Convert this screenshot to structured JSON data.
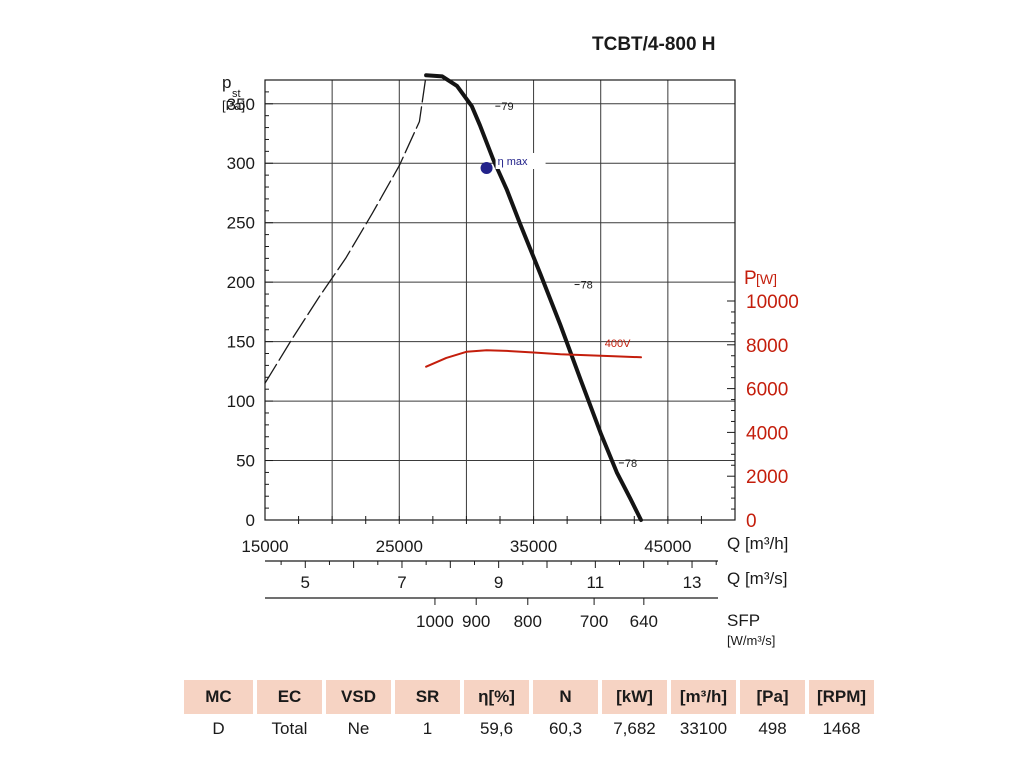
{
  "chart_data": {
    "type": "line",
    "title": "TCBT/4-800 H",
    "y_left": {
      "label_main": "p",
      "label_sub": "st",
      "unit": "[Pa]",
      "range": [
        0,
        370
      ],
      "ticks": [
        0,
        50,
        100,
        150,
        200,
        250,
        300,
        350
      ],
      "tick_labels": [
        "0",
        "50",
        "100",
        "150",
        "200",
        "250",
        "300",
        "350"
      ]
    },
    "y_right": {
      "label_main": "P",
      "unit": "[W]",
      "range": [
        0,
        10000
      ],
      "ticks": [
        0,
        2000,
        4000,
        6000,
        8000,
        10000
      ],
      "tick_labels": [
        "0",
        "2000",
        "4000",
        "6000",
        "8000",
        "10000"
      ]
    },
    "x_m3h": {
      "label": "Q [m³/h]",
      "range": [
        15000,
        50000
      ],
      "ticks": [
        15000,
        25000,
        35000,
        45000
      ],
      "tick_labels": [
        "15000",
        "25000",
        "35000",
        "45000"
      ]
    },
    "x_m3s": {
      "label": "Q [m³/s]",
      "ticks": [
        5,
        7,
        9,
        11,
        13
      ],
      "tick_labels": [
        "5",
        "7",
        "9",
        "11",
        "13"
      ]
    },
    "sfp": {
      "label": "SFP",
      "unit": "[W/m³/s]",
      "ticks": [
        1000,
        900,
        800,
        700,
        640
      ],
      "tick_labels": [
        "1000",
        "900",
        "800",
        "700",
        "640"
      ]
    },
    "series": [
      {
        "name": "pressure (unstable region)",
        "style": "dashed",
        "x": [
          15000,
          17000,
          19000,
          21000,
          23000,
          25000,
          26500,
          27000
        ],
        "y": [
          115,
          152,
          187,
          220,
          258,
          298,
          335,
          374
        ]
      },
      {
        "name": "pressure",
        "style": "solid",
        "x": [
          27000,
          28200,
          29300,
          30400,
          31000,
          32000,
          33000,
          34000,
          35500,
          37000,
          38500,
          40000,
          41200,
          42200,
          43000
        ],
        "y": [
          374,
          373,
          365,
          348,
          332,
          303,
          278,
          249,
          207,
          164,
          118,
          73,
          40,
          18,
          0
        ]
      },
      {
        "name": "400V",
        "axis": "right",
        "color": "#c41e0c",
        "x": [
          27000,
          28500,
          30000,
          31500,
          33000,
          35000,
          37000,
          39000,
          41000,
          43000
        ],
        "y": [
          7000,
          7400,
          7680,
          7750,
          7720,
          7650,
          7570,
          7520,
          7480,
          7430
        ]
      }
    ],
    "annotations": [
      {
        "text": "79",
        "x": 32600,
        "y": 348
      },
      {
        "text": "78",
        "x": 38500,
        "y": 198
      },
      {
        "text": "78",
        "x": 41800,
        "y": 48
      },
      {
        "text": "400V",
        "x": 40300,
        "y": 7900,
        "axis": "right"
      }
    ],
    "marker": {
      "label": "η max",
      "x": 31500,
      "y": 296,
      "color": "#22228a"
    }
  },
  "specs_table": {
    "headers": [
      "MC",
      "EC",
      "VSD",
      "SR",
      "η[%]",
      "N",
      "[kW]",
      "[m³/h]",
      "[Pa]",
      "[RPM]"
    ],
    "values": [
      "D",
      "Total",
      "Ne",
      "1",
      "59,6",
      "60,3",
      "7,682",
      "33100",
      "498",
      "1468"
    ]
  },
  "colors": {
    "power": "#c41e0c",
    "marker": "#22228a",
    "header_bg": "#f6d3c3"
  }
}
